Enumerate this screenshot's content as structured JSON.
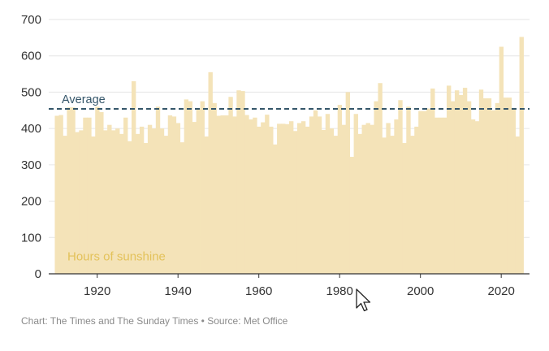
{
  "chart_data": {
    "type": "bar",
    "title": "",
    "xlabel": "",
    "ylabel": "",
    "ylim": [
      0,
      700
    ],
    "xlim": [
      1908,
      2027
    ],
    "y_ticks": [
      0,
      100,
      200,
      300,
      400,
      500,
      600,
      700
    ],
    "x_ticks": [
      1920,
      1940,
      1960,
      1980,
      2000,
      2020
    ],
    "grid": "horizontal",
    "legend": "none",
    "series": [
      {
        "label": "Hours of sunshine",
        "color": "#f4e3b8",
        "x": [
          1910,
          1911,
          1912,
          1913,
          1914,
          1915,
          1916,
          1917,
          1918,
          1919,
          1920,
          1921,
          1922,
          1923,
          1924,
          1925,
          1926,
          1927,
          1928,
          1929,
          1930,
          1931,
          1932,
          1933,
          1934,
          1935,
          1936,
          1937,
          1938,
          1939,
          1940,
          1941,
          1942,
          1943,
          1944,
          1945,
          1946,
          1947,
          1948,
          1949,
          1950,
          1951,
          1952,
          1953,
          1954,
          1955,
          1956,
          1957,
          1958,
          1959,
          1960,
          1961,
          1962,
          1963,
          1964,
          1965,
          1966,
          1967,
          1968,
          1969,
          1970,
          1971,
          1972,
          1973,
          1974,
          1975,
          1976,
          1977,
          1978,
          1979,
          1980,
          1981,
          1982,
          1983,
          1984,
          1985,
          1986,
          1987,
          1988,
          1989,
          1990,
          1991,
          1992,
          1993,
          1994,
          1995,
          1996,
          1997,
          1998,
          1999,
          2000,
          2001,
          2002,
          2003,
          2004,
          2005,
          2006,
          2007,
          2008,
          2009,
          2010,
          2011,
          2012,
          2013,
          2014,
          2015,
          2016,
          2017,
          2018,
          2019,
          2020,
          2021,
          2022,
          2023,
          2024,
          2025
        ],
        "values": [
          435,
          437,
          380,
          458,
          458,
          390,
          395,
          430,
          430,
          378,
          460,
          445,
          395,
          410,
          395,
          400,
          385,
          430,
          365,
          530,
          385,
          405,
          360,
          410,
          400,
          460,
          400,
          380,
          436,
          433,
          415,
          362,
          480,
          475,
          418,
          455,
          475,
          378,
          555,
          470,
          435,
          436,
          436,
          487,
          433,
          505,
          503,
          437,
          425,
          430,
          405,
          417,
          438,
          405,
          356,
          413,
          413,
          412,
          420,
          393,
          415,
          420,
          405,
          433,
          450,
          433,
          396,
          440,
          400,
          380,
          465,
          410,
          500,
          322,
          440,
          385,
          410,
          415,
          410,
          475,
          525,
          375,
          415,
          380,
          425,
          478,
          360,
          460,
          380,
          405,
          448,
          448,
          455,
          510,
          430,
          430,
          430,
          518,
          475,
          505,
          492,
          512,
          475,
          425,
          420,
          507,
          483,
          483,
          450,
          470,
          625,
          485,
          485,
          455,
          378,
          652
        ]
      }
    ],
    "annotations": {
      "average_label": "Average",
      "average_value": 454,
      "series_label": "Hours of sunshine"
    },
    "colors": {
      "bar": "#f4e3b8",
      "average_line": "#35566a",
      "axis": "#333333",
      "grid": "#e6e6e6",
      "series_label": "#e3c25a"
    }
  },
  "source_text": "Chart: The Times and The Sunday Times • Source: Met Office"
}
